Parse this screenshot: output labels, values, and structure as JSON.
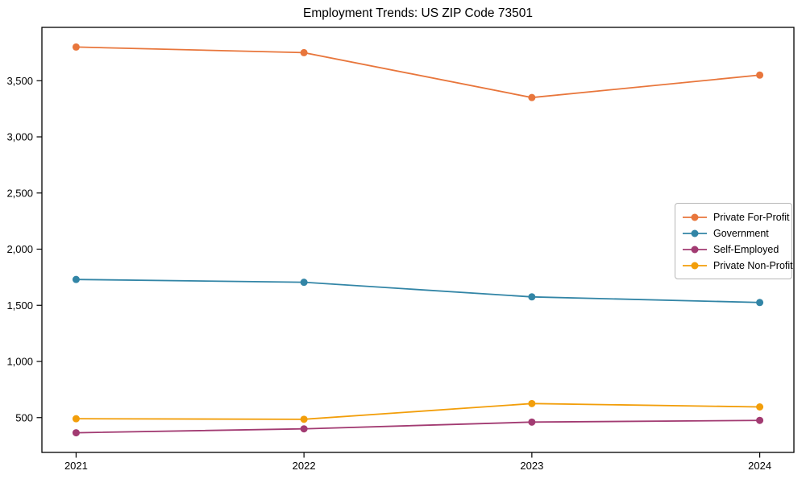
{
  "chart_data": {
    "type": "line",
    "title": "Employment Trends: US ZIP Code 73501",
    "xlabel": "",
    "ylabel": "",
    "x": [
      2021,
      2022,
      2023,
      2024
    ],
    "x_tick_labels": [
      "2021",
      "2022",
      "2023",
      "2024"
    ],
    "series": [
      {
        "name": "Private For-Profit",
        "color": "#E8763C",
        "values": [
          3800,
          3750,
          3350,
          3550
        ]
      },
      {
        "name": "Government",
        "color": "#3285A6",
        "values": [
          1730,
          1705,
          1575,
          1525
        ]
      },
      {
        "name": "Self-Employed",
        "color": "#A23B72",
        "values": [
          365,
          400,
          460,
          475
        ]
      },
      {
        "name": "Private Non-Profit",
        "color": "#F29E0A",
        "values": [
          490,
          485,
          625,
          595
        ]
      }
    ],
    "y_ticks": [
      500,
      1000,
      1500,
      2000,
      2500,
      3000,
      3500
    ],
    "y_tick_labels": [
      "500",
      "1,000",
      "1,500",
      "2,000",
      "2,500",
      "3,000",
      "3,500"
    ],
    "xlim": [
      2020.85,
      2024.15
    ],
    "ylim": [
      190,
      3975
    ],
    "grid": false,
    "legend_position": "right-middle",
    "axis_color": "#000000",
    "background": "#ffffff",
    "marker": "circle",
    "line_width": 1.8,
    "marker_radius": 4.5
  }
}
